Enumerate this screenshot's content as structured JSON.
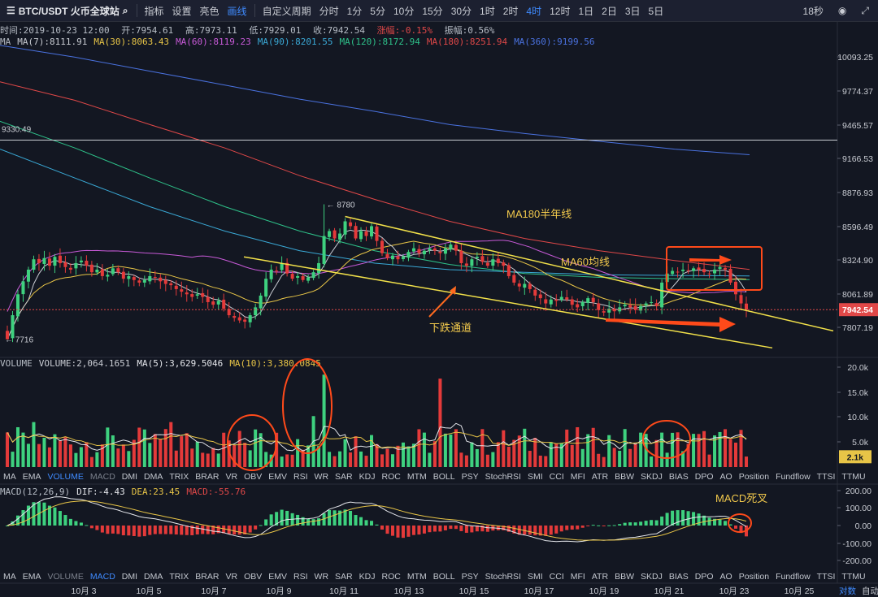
{
  "toolbar": {
    "symbol": "BTC/USDT 火币全球站",
    "items": [
      {
        "label": "指标",
        "icon": "indicator-icon"
      },
      {
        "label": "设置",
        "icon": "gear-icon"
      },
      {
        "label": "亮色",
        "icon": "sun-icon"
      },
      {
        "label": "画线",
        "icon": "pen-icon",
        "active": true
      }
    ],
    "periods": [
      "自定义周期",
      "分时",
      "1分",
      "5分",
      "10分",
      "15分",
      "30分",
      "1时",
      "2时",
      "4时",
      "12时",
      "1日",
      "2日",
      "3日",
      "5日"
    ],
    "active_period": "4时",
    "countdown": "18秒"
  },
  "ohlc": {
    "time": "时间:2019-10-23 12:00",
    "open": "开:7954.61",
    "high": "高:7973.11",
    "low": "低:7929.01",
    "close": "收:7942.54",
    "change": "涨幅:-0.15%",
    "amplitude": "振幅:0.56%"
  },
  "ma_legend": [
    {
      "text": "MA",
      "color": "#b7bdc6"
    },
    {
      "text": "MA(7):8111.91",
      "color": "#c9ccd3"
    },
    {
      "text": "MA(30):8063.43",
      "color": "#e8c547"
    },
    {
      "text": "MA(60):8119.23",
      "color": "#c85ad8"
    },
    {
      "text": "MA(90):8201.55",
      "color": "#3aa9d6"
    },
    {
      "text": "MA(120):8172.94",
      "color": "#2ec28a"
    },
    {
      "text": "MA(180):8251.94",
      "color": "#e04848"
    },
    {
      "text": "MA(360):9199.56",
      "color": "#4a72e0"
    }
  ],
  "volume_legend": [
    {
      "text": "VOLUME",
      "color": "#b7bdc6"
    },
    {
      "text": "VOLUME:2,064.1651",
      "color": "#c9ccd3"
    },
    {
      "text": "MA(5):3,629.5046",
      "color": "#e4e6eb"
    },
    {
      "text": "MA(10):3,380.0845",
      "color": "#e8c547"
    }
  ],
  "macd_legend": [
    {
      "text": "MACD(12,26,9)",
      "color": "#b7bdc6"
    },
    {
      "text": "DIF:-4.43",
      "color": "#e4e6eb"
    },
    {
      "text": "DEA:23.45",
      "color": "#e8c547"
    },
    {
      "text": "MACD:-55.76",
      "color": "#e04848"
    }
  ],
  "indicator_tabs": [
    "MA",
    "EMA",
    "VOLUME",
    "MACD",
    "DMI",
    "DMA",
    "TRIX",
    "BRAR",
    "VR",
    "OBV",
    "EMV",
    "RSI",
    "WR",
    "SAR",
    "KDJ",
    "ROC",
    "MTM",
    "BOLL",
    "PSY",
    "StochRSI",
    "SMI",
    "CCI",
    "MFI",
    "ATR",
    "BBW",
    "SKDJ",
    "BIAS",
    "DPO",
    "AO",
    "Position",
    "Fundflow",
    "TTSI",
    "TTMU"
  ],
  "volume_tabs_active": "VOLUME",
  "macd_tabs_active": "MACD",
  "colors": {
    "up": "#3ed17f",
    "down": "#e43a3a",
    "bg": "#131722"
  },
  "chart_data": {
    "type": "candlestick",
    "timeframe": "4时",
    "price_axis_ticks": [
      "10093.25",
      "9774.37",
      "9465.57",
      "9166.53",
      "8876.93",
      "8596.49",
      "8324.90",
      "8061.89",
      "7807.19"
    ],
    "volume_axis_ticks": [
      "20.0k",
      "15.0k",
      "10.0k",
      "5.0k"
    ],
    "macd_axis_ticks": [
      "200.00",
      "100.00",
      "0.00",
      "-100.00",
      "-200.00"
    ],
    "x_ticks": [
      "10月 3",
      "10月 5",
      "10月 7",
      "10月 9",
      "10月 11",
      "10月 13",
      "10月 15",
      "10月 17",
      "10月 19",
      "10月 21",
      "10月 23",
      "10月 25"
    ],
    "x_corner": [
      "对数",
      "自动"
    ],
    "current_price_label": "7942.54",
    "current_volume_label": "2.1k",
    "horizontal_line_value": 9330.49,
    "horizontal_line_label": "9330.49",
    "high_marker": {
      "value": 8780,
      "label": "← 8780"
    },
    "low_marker": {
      "value": 7716,
      "label": "← 7716"
    },
    "annotations": [
      {
        "text": "MA180半年线"
      },
      {
        "text": "MA60均线"
      },
      {
        "text": "下跌通道"
      },
      {
        "text": "MACD死叉"
      }
    ],
    "closes": [
      7716,
      7900,
      8060,
      8160,
      8250,
      8330,
      8300,
      8340,
      8280,
      8350,
      8300,
      8270,
      8250,
      8300,
      8320,
      8280,
      8230,
      8250,
      8200,
      8210,
      8260,
      8230,
      8180,
      8200,
      8170,
      8150,
      8170,
      8200,
      8190,
      8160,
      8140,
      8130,
      8100,
      8080,
      8060,
      8040,
      8060,
      8040,
      8000,
      7980,
      8010,
      7950,
      7900,
      7880,
      7860,
      7850,
      7900,
      7960,
      8050,
      8180,
      8250,
      8240,
      8300,
      8220,
      8180,
      8200,
      8170,
      8190,
      8230,
      8300,
      8520,
      8560,
      8500,
      8540,
      8640,
      8600,
      8500,
      8560,
      8520,
      8600,
      8480,
      8380,
      8340,
      8360,
      8330,
      8350,
      8390,
      8420,
      8380,
      8400,
      8420,
      8400,
      8380,
      8420,
      8450,
      8400,
      8300,
      8280,
      8330,
      8350,
      8310,
      8280,
      8330,
      8300,
      8280,
      8200,
      8150,
      8120,
      8140,
      8100,
      8050,
      8030,
      7990,
      8020,
      8010,
      8040,
      8020,
      7980,
      7960,
      8000,
      8030,
      8000,
      7940,
      7920,
      7950,
      7930,
      7960,
      7980,
      7960,
      7940,
      7970,
      7990,
      8000,
      7970,
      8150,
      8220,
      8240,
      8230,
      8250,
      8240,
      8260,
      8250,
      8230,
      8220,
      8250,
      8270,
      8250,
      8150,
      8060,
      7990,
      7942
    ]
  }
}
